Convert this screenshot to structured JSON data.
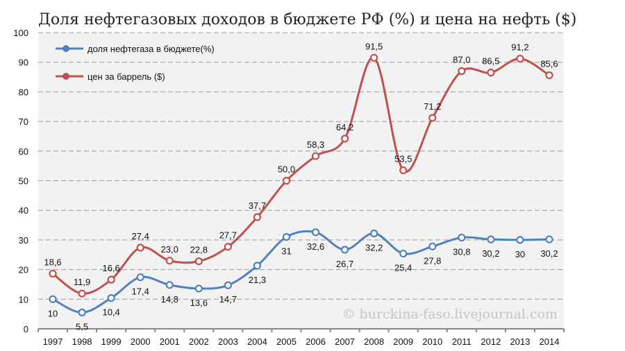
{
  "chart_data": {
    "type": "line",
    "title": "Доля нефтегазовых доходов в бюджете РФ (%) и цена на нефть ($)",
    "watermark": "© burckina-faso.livejournal.com",
    "xlabel": "",
    "ylabel": "",
    "ylim": [
      0,
      100
    ],
    "yticks": [
      0,
      10,
      20,
      30,
      40,
      50,
      60,
      70,
      80,
      90,
      100
    ],
    "grid": true,
    "legend_position": "top-left",
    "categories": [
      "1997",
      "1998",
      "1999",
      "2000",
      "2001",
      "2002",
      "2003",
      "2004",
      "2005",
      "2006",
      "2007",
      "2008",
      "2009",
      "2010",
      "2011",
      "2012",
      "2013",
      "2014"
    ],
    "series": [
      {
        "name": "доля нефтегаза в бюджете(%)",
        "color": "#4f81bd",
        "values": [
          10,
          5.5,
          10.4,
          17.4,
          14.8,
          13.6,
          14.7,
          21.3,
          31,
          32.6,
          26.7,
          32.2,
          25.4,
          27.8,
          30.8,
          30.2,
          30,
          30.2
        ],
        "labels": [
          "10",
          "5,5",
          "10,4",
          "17,4",
          "14,8",
          "13,6",
          "14,7",
          "21,3",
          "31",
          "32,6",
          "26,7",
          "32,2",
          "25,4",
          "27,8",
          "30,8",
          "30,2",
          "30",
          "30,2"
        ]
      },
      {
        "name": "цен за баррель ($)",
        "color": "#c0504d",
        "values": [
          18.6,
          11.9,
          16.6,
          27.4,
          23.0,
          22.8,
          27.7,
          37.7,
          50.0,
          58.3,
          64.2,
          91.5,
          53.5,
          71.2,
          87.0,
          86.5,
          91.2,
          85.6
        ],
        "labels": [
          "18,6",
          "11,9",
          "16,6",
          "27,4",
          "23,0",
          "22,8",
          "27,7",
          "37,7",
          "50,0",
          "58,3",
          "64,2",
          "91,5",
          "53,5",
          "71,2",
          "87,0",
          "86,5",
          "91,2",
          "85,6"
        ]
      }
    ]
  }
}
